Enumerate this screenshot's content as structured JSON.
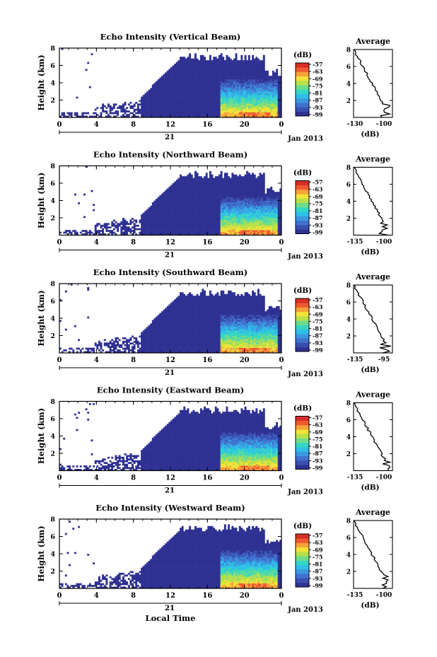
{
  "chart_data": [
    {
      "type": "heatmap",
      "title": "Echo Intensity (Vertical Beam)",
      "ylabel": "Height (km)",
      "colorbar_unit": "(dB)",
      "colorbar_ticks": [
        "-57",
        "-63",
        "-69",
        "-75",
        "-81",
        "-87",
        "-93",
        "-99"
      ],
      "x_ticks": [
        "0",
        "4",
        "8",
        "12",
        "16",
        "20",
        "0"
      ],
      "date_day": "21",
      "date_label": "Jan 2013",
      "ylim": [
        0,
        8
      ],
      "y_ticks": [
        "2",
        "4",
        "6",
        "8"
      ],
      "profile": {
        "title": "Average",
        "xlabel": "(dB)",
        "x_ticks": [
          "-130",
          "-100"
        ],
        "y_ticks": [
          "2",
          "4",
          "6",
          "8"
        ]
      }
    },
    {
      "type": "heatmap",
      "title": "Echo Intensity (Northward Beam)",
      "ylabel": "Height (km)",
      "colorbar_unit": "(dB)",
      "colorbar_ticks": [
        "-57",
        "-63",
        "-69",
        "-75",
        "-81",
        "-87",
        "-93",
        "-99"
      ],
      "x_ticks": [
        "0",
        "4",
        "8",
        "12",
        "16",
        "20",
        "0"
      ],
      "date_day": "21",
      "date_label": "Jan 2013",
      "ylim": [
        0,
        8
      ],
      "y_ticks": [
        "2",
        "4",
        "6",
        "8"
      ],
      "profile": {
        "title": "Average",
        "xlabel": "(dB)",
        "x_ticks": [
          "-135",
          "-100"
        ],
        "y_ticks": [
          "2",
          "4",
          "6",
          "8"
        ]
      }
    },
    {
      "type": "heatmap",
      "title": "Echo Intensity (Southward Beam)",
      "ylabel": "Height (km)",
      "colorbar_unit": "(dB)",
      "colorbar_ticks": [
        "-57",
        "-63",
        "-69",
        "-75",
        "-81",
        "-87",
        "-93",
        "-99"
      ],
      "x_ticks": [
        "0",
        "4",
        "8",
        "12",
        "16",
        "20",
        "0"
      ],
      "date_day": "21",
      "date_label": "Jan 2013",
      "ylim": [
        0,
        8
      ],
      "y_ticks": [
        "2",
        "4",
        "6",
        "8"
      ],
      "profile": {
        "title": "Average",
        "xlabel": "(dB)",
        "x_ticks": [
          "-135",
          "-95"
        ],
        "y_ticks": [
          "2",
          "4",
          "6",
          "8"
        ]
      }
    },
    {
      "type": "heatmap",
      "title": "Echo Intensity (Eastward Beam)",
      "ylabel": "Height (km)",
      "colorbar_unit": "(dB)",
      "colorbar_ticks": [
        "-57",
        "-63",
        "-69",
        "-75",
        "-81",
        "-87",
        "-93",
        "-99"
      ],
      "x_ticks": [
        "0",
        "4",
        "8",
        "12",
        "16",
        "20",
        "0"
      ],
      "date_day": "21",
      "date_label": "Jan 2013",
      "ylim": [
        0,
        8
      ],
      "y_ticks": [
        "2",
        "4",
        "6",
        "8"
      ],
      "profile": {
        "title": "Average",
        "xlabel": "(dB)",
        "x_ticks": [
          "-135",
          "-100"
        ],
        "y_ticks": [
          "2",
          "4",
          "6",
          "8"
        ]
      }
    },
    {
      "type": "heatmap",
      "title": "Echo Intensity (Westward Beam)",
      "ylabel": "Height (km)",
      "colorbar_unit": "(dB)",
      "colorbar_ticks": [
        "-57",
        "-63",
        "-69",
        "-75",
        "-81",
        "-87",
        "-93",
        "-99"
      ],
      "x_ticks": [
        "0",
        "4",
        "8",
        "12",
        "16",
        "20",
        "0"
      ],
      "date_day": "21",
      "date_label": "Jan 2013",
      "ylim": [
        0,
        8
      ],
      "y_ticks": [
        "2",
        "4",
        "6",
        "8"
      ],
      "profile": {
        "title": "Average",
        "xlabel": "(dB)",
        "x_ticks": [
          "-135",
          "-100"
        ],
        "y_ticks": [
          "2",
          "4",
          "6",
          "8"
        ]
      }
    }
  ],
  "xlabel": "Local Time",
  "colormap": [
    "#2e3192",
    "#3a4fb0",
    "#3f72cf",
    "#3a98e0",
    "#2fbfe8",
    "#36d6c4",
    "#6fdc8c",
    "#b7e04a",
    "#f2e23a",
    "#f7a13a",
    "#ee5a30",
    "#d62f26"
  ],
  "background_echo_color": "#2e3192"
}
